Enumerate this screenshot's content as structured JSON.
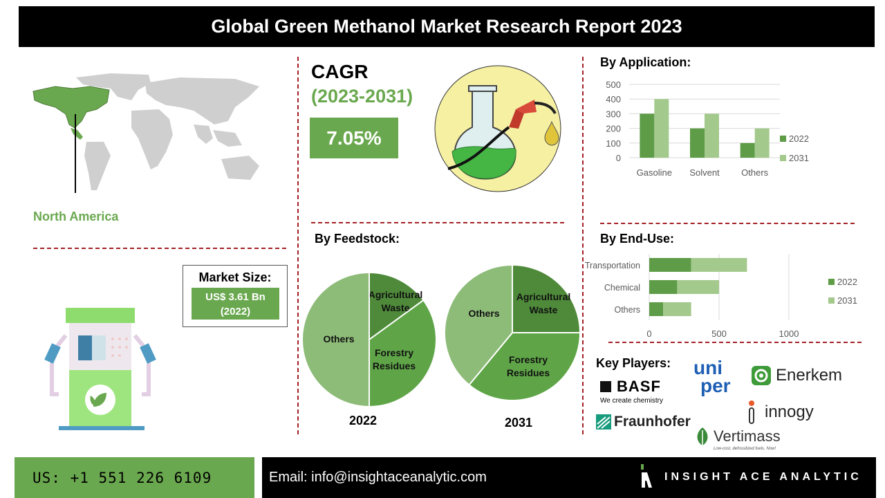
{
  "title": "Global Green Methanol Market Research Report 2023",
  "region": {
    "label": "North America"
  },
  "cagr": {
    "title": "CAGR",
    "period": "(2023-2031)",
    "value": "7.05%"
  },
  "market_size": {
    "label": "Market Size:",
    "value_line1": "US$ 3.61 Bn",
    "value_line2": "(2022)"
  },
  "colors": {
    "green_2022": "#5e9c47",
    "green_2031": "#a3c98c",
    "accent_green": "#6aa84f",
    "divider_red": "#a31f24"
  },
  "sections": {
    "application": "By Application:",
    "feedstock": "By Feedstock:",
    "end_use": "By End-Use:",
    "key_players": "Key Players:"
  },
  "chart_data": [
    {
      "id": "application",
      "type": "bar",
      "categories": [
        "Gasoline",
        "Solvent",
        "Others"
      ],
      "series": [
        {
          "name": "2022",
          "values": [
            300,
            200,
            100
          ]
        },
        {
          "name": "2031",
          "values": [
            400,
            300,
            200
          ]
        }
      ],
      "ylim": [
        0,
        500
      ],
      "yticks": [
        0,
        100,
        200,
        300,
        400,
        500
      ],
      "grid": true,
      "legend": "right"
    },
    {
      "id": "feedstock_2022",
      "type": "pie",
      "title": "2022",
      "slices": [
        {
          "label_lines": [
            "Agricultural",
            "Waste"
          ],
          "value": 15
        },
        {
          "label_lines": [
            "Forestry",
            "Residues"
          ],
          "value": 35
        },
        {
          "label_lines": [
            "Others"
          ],
          "value": 50
        }
      ]
    },
    {
      "id": "feedstock_2031",
      "type": "pie",
      "title": "2031",
      "slices": [
        {
          "label_lines": [
            "Agricultural",
            "Waste"
          ],
          "value": 25
        },
        {
          "label_lines": [
            "Forestry",
            "Residues"
          ],
          "value": 36
        },
        {
          "label_lines": [
            "Others"
          ],
          "value": 39
        }
      ]
    },
    {
      "id": "end_use",
      "type": "bar",
      "orientation": "horizontal",
      "stacked": true,
      "categories": [
        "Transportation",
        "Chemical",
        "Others"
      ],
      "series": [
        {
          "name": "2022",
          "values": [
            300,
            200,
            100
          ]
        },
        {
          "name": "2031",
          "values": [
            400,
            300,
            200
          ]
        }
      ],
      "xlim": [
        0,
        1000
      ],
      "xticks": [
        0,
        500,
        1000
      ],
      "grid": true,
      "legend": "right"
    }
  ],
  "key_players": {
    "basf": "BASF",
    "basf_tagline": "We create chemistry",
    "uniper_line1": "uni",
    "uniper_line2": "per",
    "enerkem": "Enerkem",
    "innogy": "innogy",
    "fraunhofer": "Fraunhofer",
    "vertimass": "Vertimass",
    "vertimass_tagline": "Low-cost, defossilized fuels. Now!"
  },
  "footer": {
    "phone": "US: +1 551 226 6109",
    "email": "Email: info@insightaceanalytic.com",
    "brand": "INSIGHT ACE ANALYTIC"
  }
}
